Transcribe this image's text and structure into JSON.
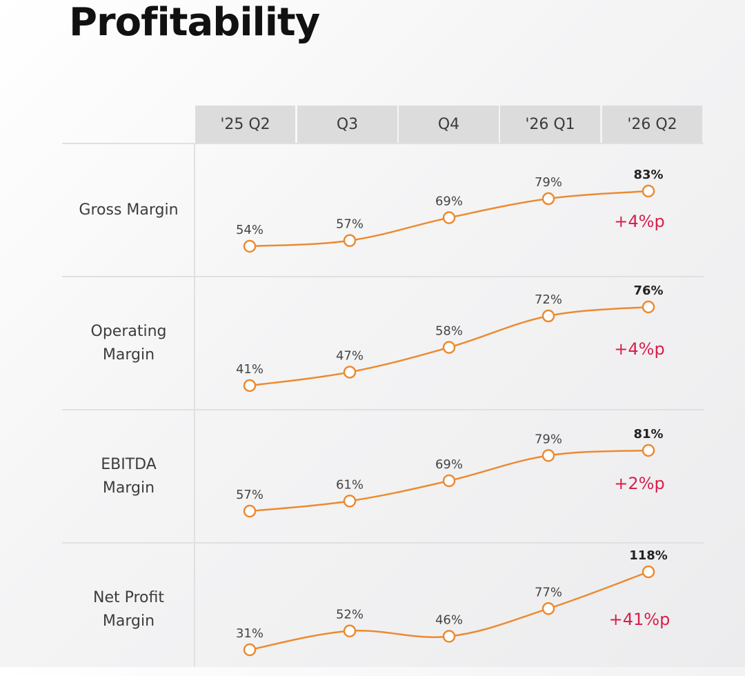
{
  "page": {
    "title": "Profitability"
  },
  "chart_data": {
    "type": "line",
    "categories": [
      "'25 Q2",
      "Q3",
      "Q4",
      "'26 Q1",
      "'26 Q2"
    ],
    "unit": "%",
    "accent_color": "#ec8a2f",
    "delta_color": "#d81f4b",
    "rows": [
      {
        "label_lines": [
          "Gross Margin"
        ],
        "values": [
          54,
          57,
          69,
          79,
          83
        ],
        "delta": "+4%p"
      },
      {
        "label_lines": [
          "Operating",
          "Margin"
        ],
        "values": [
          41,
          47,
          58,
          72,
          76
        ],
        "delta": "+4%p"
      },
      {
        "label_lines": [
          "EBITDA",
          "Margin"
        ],
        "values": [
          57,
          61,
          69,
          79,
          81
        ],
        "delta": "+2%p"
      },
      {
        "label_lines": [
          "Net Profit",
          "Margin"
        ],
        "values": [
          31,
          52,
          46,
          77,
          118
        ],
        "delta": "+41%p"
      }
    ]
  }
}
